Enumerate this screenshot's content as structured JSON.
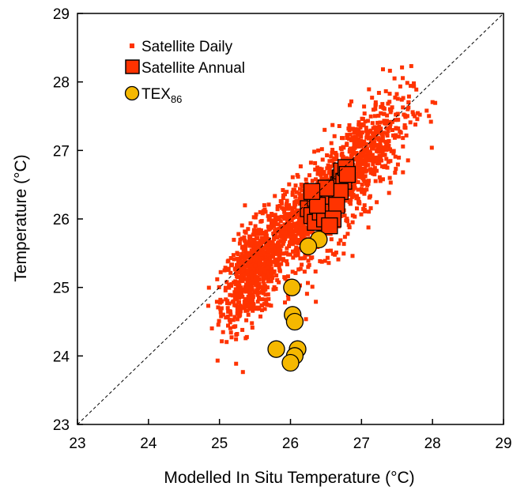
{
  "chart_data": {
    "type": "scatter",
    "xlabel": "Modelled In Situ Temperature (°C)",
    "ylabel": "Temperature (°C)",
    "xlim": [
      23,
      29
    ],
    "ylim": [
      23,
      29
    ],
    "x_ticks": [
      "23",
      "24",
      "25",
      "26",
      "27",
      "28",
      "29"
    ],
    "y_ticks": [
      "23",
      "24",
      "25",
      "26",
      "27",
      "28",
      "29"
    ],
    "grid": false,
    "legend_position": "top-left",
    "reference_line": "1:1 dashed",
    "legend": [
      {
        "label": "Satellite Daily",
        "marker": "small-square",
        "color": "#ff3300"
      },
      {
        "label": "Satellite Annual",
        "marker": "large-square",
        "color": "#ff3300"
      },
      {
        "label": "TEX",
        "subscript": "86",
        "marker": "circle",
        "color": "#f5b800"
      }
    ],
    "series": [
      {
        "name": "Satellite Daily",
        "color": "#ff3300",
        "clusters": [
          {
            "cx": 25.45,
            "cy": 25.2,
            "sx": 0.3,
            "sy": 0.55,
            "n": 650
          },
          {
            "cx": 26.1,
            "cy": 25.95,
            "sx": 0.42,
            "sy": 0.5,
            "n": 550
          },
          {
            "cx": 27.0,
            "cy": 26.9,
            "sx": 0.5,
            "sy": 0.58,
            "n": 600
          },
          {
            "cx": 26.55,
            "cy": 26.1,
            "sx": 0.45,
            "sy": 0.7,
            "n": 200
          }
        ],
        "x_range": [
          24.8,
          28.2
        ],
        "y_range": [
          23.5,
          28.5
        ]
      },
      {
        "name": "Satellite Annual",
        "color": "#ff3300",
        "x": [
          26.25,
          26.3,
          26.35,
          26.35,
          26.4,
          26.42,
          26.45,
          26.48,
          26.5,
          26.55,
          26.6,
          26.62,
          26.65,
          26.68,
          26.7,
          26.72,
          26.75,
          26.78,
          26.8,
          26.7,
          26.65,
          26.6,
          26.5,
          26.38,
          26.3,
          26.55
        ],
        "y": [
          26.15,
          26.05,
          26.3,
          25.95,
          26.4,
          26.1,
          26.35,
          26.0,
          26.2,
          26.25,
          26.1,
          26.45,
          26.3,
          26.5,
          26.6,
          26.7,
          26.55,
          26.75,
          26.65,
          26.4,
          26.2,
          26.0,
          26.45,
          26.2,
          26.4,
          25.9
        ]
      },
      {
        "name": "TEX86",
        "color": "#f5b800",
        "x": [
          26.4,
          26.25,
          26.02,
          26.03,
          26.06,
          25.8,
          26.1,
          26.06,
          26.0
        ],
        "y": [
          25.7,
          25.6,
          25.0,
          24.6,
          24.5,
          24.1,
          24.1,
          24.0,
          23.9
        ]
      }
    ]
  }
}
